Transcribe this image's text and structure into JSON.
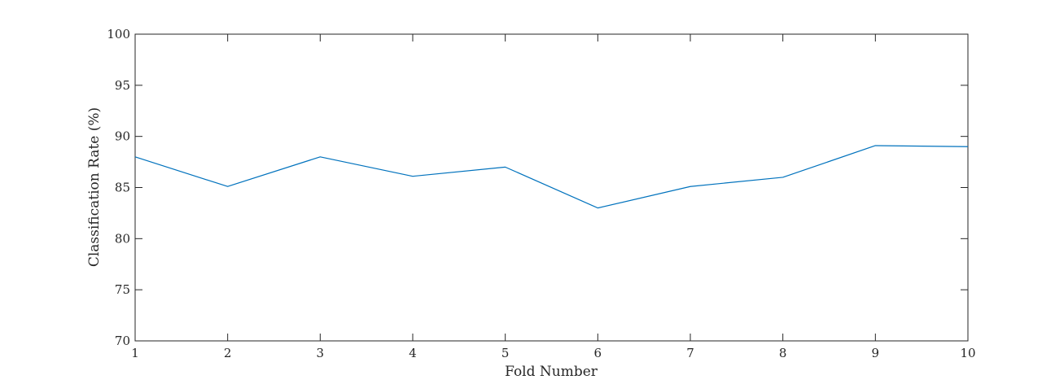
{
  "chart_data": {
    "type": "line",
    "title": "",
    "xlabel": "Fold Number",
    "ylabel": "Classification Rate (%)",
    "xlim": [
      1,
      10
    ],
    "ylim": [
      70,
      100
    ],
    "x_ticks": [
      1,
      2,
      3,
      4,
      5,
      6,
      7,
      8,
      9,
      10
    ],
    "y_ticks": [
      70,
      75,
      80,
      85,
      90,
      95,
      100
    ],
    "grid": false,
    "series": [
      {
        "x": [
          1,
          2,
          3,
          4,
          5,
          6,
          7,
          8,
          9,
          10
        ],
        "values": [
          88.0,
          85.1,
          88.0,
          86.1,
          87.0,
          83.0,
          85.1,
          86.0,
          89.1,
          89.0
        ],
        "color": "#0072BD"
      }
    ]
  }
}
